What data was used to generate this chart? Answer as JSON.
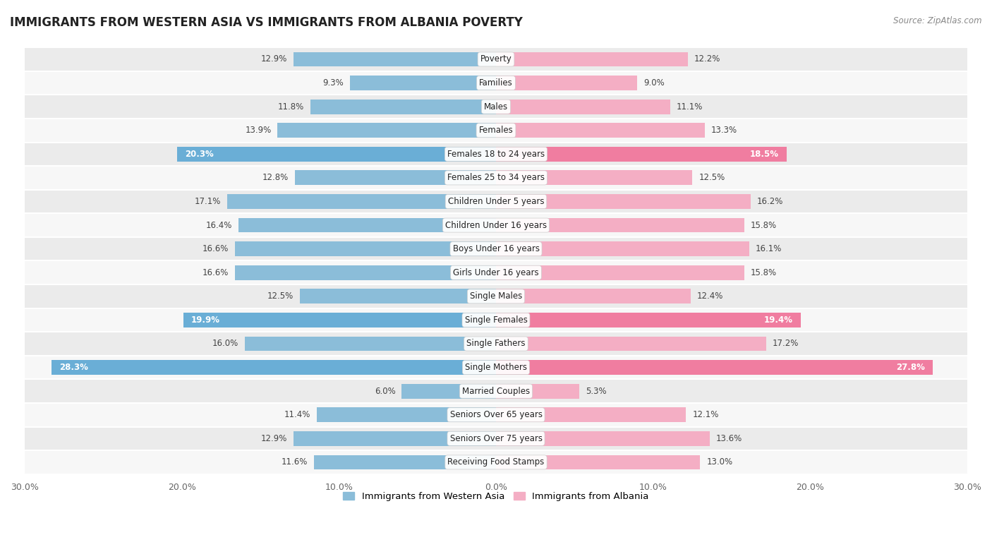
{
  "title": "IMMIGRANTS FROM WESTERN ASIA VS IMMIGRANTS FROM ALBANIA POVERTY",
  "source": "Source: ZipAtlas.com",
  "categories": [
    "Poverty",
    "Families",
    "Males",
    "Females",
    "Females 18 to 24 years",
    "Females 25 to 34 years",
    "Children Under 5 years",
    "Children Under 16 years",
    "Boys Under 16 years",
    "Girls Under 16 years",
    "Single Males",
    "Single Females",
    "Single Fathers",
    "Single Mothers",
    "Married Couples",
    "Seniors Over 65 years",
    "Seniors Over 75 years",
    "Receiving Food Stamps"
  ],
  "western_asia": [
    12.9,
    9.3,
    11.8,
    13.9,
    20.3,
    12.8,
    17.1,
    16.4,
    16.6,
    16.6,
    12.5,
    19.9,
    16.0,
    28.3,
    6.0,
    11.4,
    12.9,
    11.6
  ],
  "albania": [
    12.2,
    9.0,
    11.1,
    13.3,
    18.5,
    12.5,
    16.2,
    15.8,
    16.1,
    15.8,
    12.4,
    19.4,
    17.2,
    27.8,
    5.3,
    12.1,
    13.6,
    13.0
  ],
  "color_western_asia": "#8bbdd9",
  "color_albania": "#f4aec4",
  "color_western_asia_highlight": "#6aaed6",
  "color_albania_highlight": "#f07da0",
  "highlight_rows": [
    4,
    11,
    13
  ],
  "bg_color_odd": "#ebebeb",
  "bg_color_even": "#f7f7f7",
  "axis_max": 30.0,
  "bar_height": 0.62,
  "legend_label_west": "Immigrants from Western Asia",
  "legend_label_alba": "Immigrants from Albania",
  "tick_vals": [
    -30,
    -20,
    -10,
    0,
    10,
    20,
    30
  ]
}
